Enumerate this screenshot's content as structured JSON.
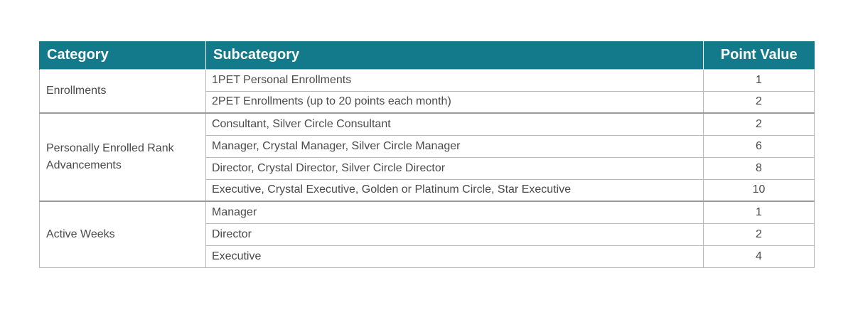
{
  "table": {
    "headers": {
      "category": "Category",
      "subcategory": "Subcategory",
      "point_value": "Point Value"
    },
    "groups": [
      {
        "category": "Enrollments",
        "rows": [
          {
            "subcategory": "1PET Personal Enrollments",
            "points": "1"
          },
          {
            "subcategory": "2PET Enrollments (up to 20 points each month)",
            "points": "2"
          }
        ]
      },
      {
        "category": "Personally Enrolled Rank Advancements",
        "rows": [
          {
            "subcategory": "Consultant, Silver Circle Consultant",
            "points": "2"
          },
          {
            "subcategory": "Manager, Crystal Manager, Silver Circle Manager",
            "points": "6"
          },
          {
            "subcategory": "Director, Crystal Director, Silver Circle Director",
            "points": "8"
          },
          {
            "subcategory": "Executive, Crystal Executive, Golden or Platinum Circle, Star Executive",
            "points": "10"
          }
        ]
      },
      {
        "category": "Active Weeks",
        "rows": [
          {
            "subcategory": "Manager",
            "points": "1"
          },
          {
            "subcategory": "Director",
            "points": "2"
          },
          {
            "subcategory": "Executive",
            "points": "4"
          }
        ]
      }
    ]
  },
  "colors": {
    "header_bg": "#137a8c",
    "header_text": "#ffffff",
    "body_text": "#4a4a4a",
    "border": "#b8b8b8"
  }
}
